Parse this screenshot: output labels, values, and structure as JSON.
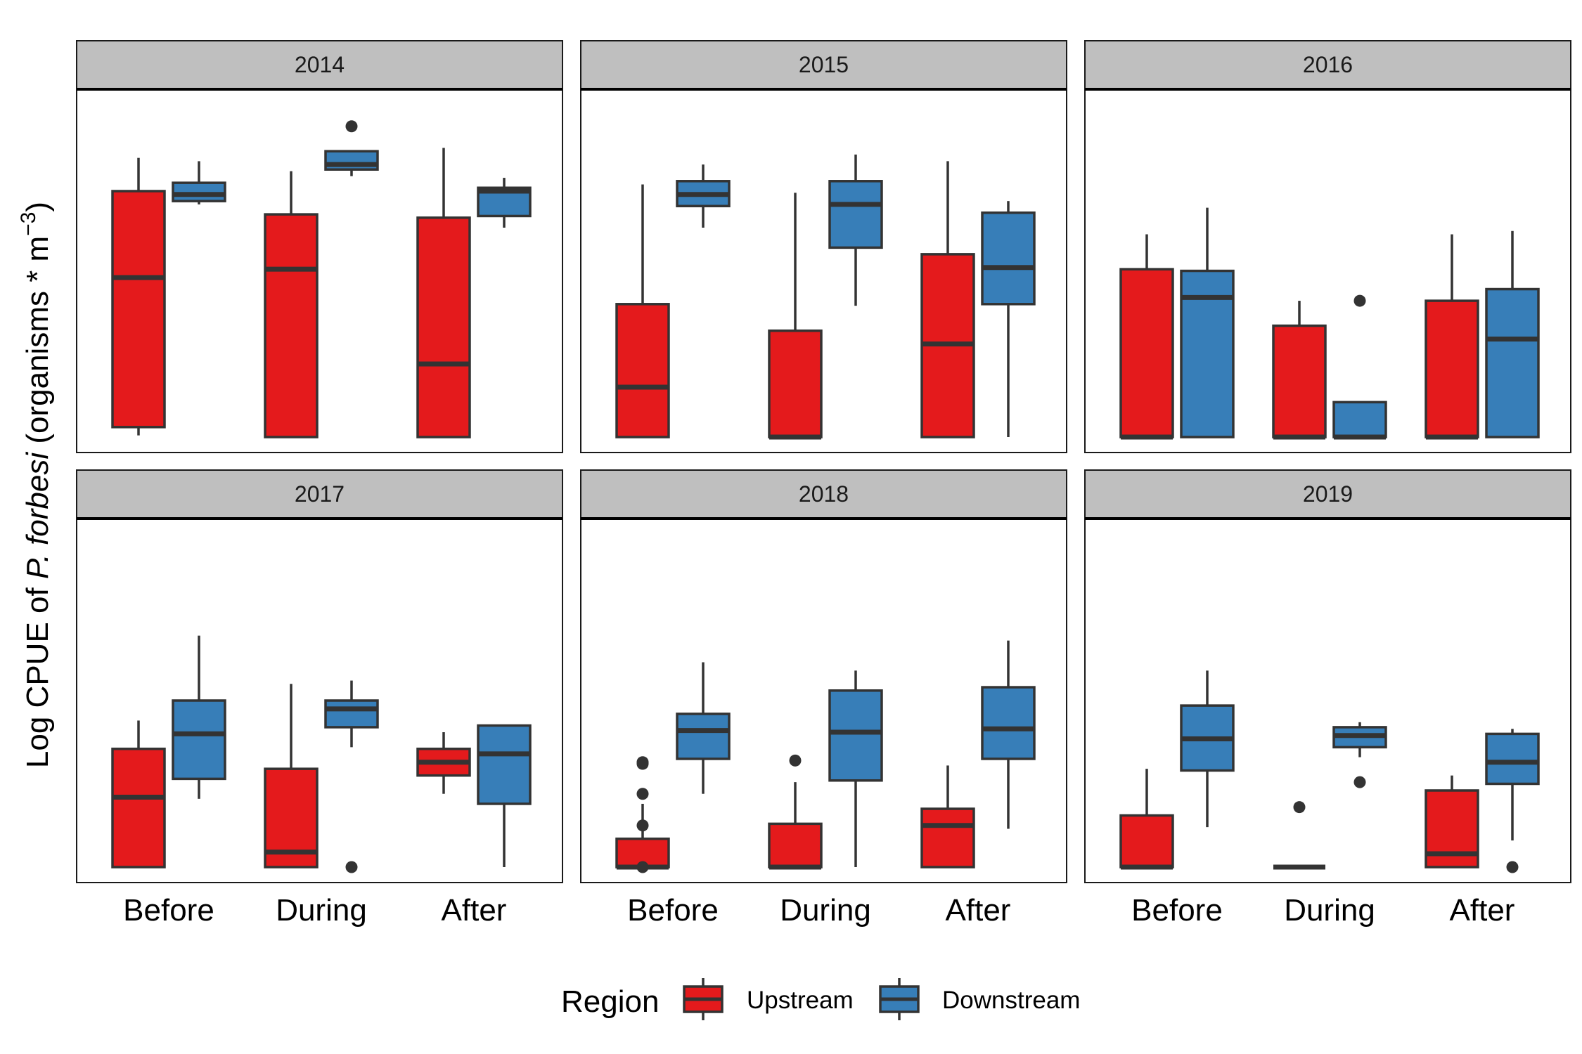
{
  "chart_data": {
    "type": "boxplot",
    "facet_by": "Year",
    "facets": [
      "2014",
      "2015",
      "2016",
      "2017",
      "2018",
      "2019"
    ],
    "categories": [
      "Before",
      "During",
      "After"
    ],
    "ylabel": {
      "prefix": "Log CPUE of ",
      "species": "P. forbesi",
      "units_open": " (organisms * m",
      "units_exp": "−3",
      "units_close": ")"
    },
    "ylim": [
      0,
      10
    ],
    "grid": false,
    "legend": {
      "title": "Region",
      "position": "bottom",
      "entries": [
        {
          "name": "Upstream",
          "color": "#E41A1C"
        },
        {
          "name": "Downstream",
          "color": "#377EB8"
        }
      ]
    },
    "colors": {
      "Upstream": "#E41A1C",
      "Downstream": "#377EB8",
      "outline": "#333333",
      "strip": "#BFBFBF"
    },
    "data": {
      "2014": {
        "Before": {
          "Upstream": {
            "min": 0.05,
            "q1": 0.3,
            "median": 4.8,
            "q3": 7.4,
            "max": 8.4,
            "outliers": []
          },
          "Downstream": {
            "min": 7.0,
            "q1": 7.1,
            "median": 7.3,
            "q3": 7.65,
            "max": 8.3,
            "outliers": []
          }
        },
        "During": {
          "Upstream": {
            "min": 0.0,
            "q1": 0.0,
            "median": 5.05,
            "q3": 6.7,
            "max": 8.0,
            "outliers": []
          },
          "Downstream": {
            "min": 7.85,
            "q1": 8.05,
            "median": 8.2,
            "q3": 8.6,
            "max": 8.6,
            "outliers": [
              9.35
            ]
          }
        },
        "After": {
          "Upstream": {
            "min": 0.0,
            "q1": 0.0,
            "median": 2.2,
            "q3": 6.6,
            "max": 8.7,
            "outliers": []
          },
          "Downstream": {
            "min": 6.3,
            "q1": 6.65,
            "median": 7.4,
            "q3": 7.5,
            "max": 7.8,
            "outliers": []
          }
        }
      },
      "2015": {
        "Before": {
          "Upstream": {
            "min": 0.0,
            "q1": 0.0,
            "median": 1.5,
            "q3": 4.0,
            "max": 7.6,
            "outliers": []
          },
          "Downstream": {
            "min": 6.3,
            "q1": 6.95,
            "median": 7.3,
            "q3": 7.7,
            "max": 8.2,
            "outliers": []
          }
        },
        "During": {
          "Upstream": {
            "min": 0.0,
            "q1": 0.0,
            "median": 0.0,
            "q3": 3.2,
            "max": 7.35,
            "outliers": []
          },
          "Downstream": {
            "min": 3.95,
            "q1": 5.7,
            "median": 7.0,
            "q3": 7.7,
            "max": 8.5,
            "outliers": []
          }
        },
        "After": {
          "Upstream": {
            "min": 0.0,
            "q1": 0.0,
            "median": 2.8,
            "q3": 5.5,
            "max": 8.3,
            "outliers": []
          },
          "Downstream": {
            "min": 0.0,
            "q1": 4.0,
            "median": 5.1,
            "q3": 6.75,
            "max": 7.1,
            "outliers": []
          }
        }
      },
      "2016": {
        "Before": {
          "Upstream": {
            "min": 0.0,
            "q1": 0.0,
            "median": 0.0,
            "q3": 5.05,
            "max": 6.1,
            "outliers": []
          },
          "Downstream": {
            "min": 0.0,
            "q1": 0.0,
            "median": 4.2,
            "q3": 5.0,
            "max": 6.9,
            "outliers": []
          }
        },
        "During": {
          "Upstream": {
            "min": 0.0,
            "q1": 0.0,
            "median": 0.0,
            "q3": 3.35,
            "max": 4.1,
            "outliers": []
          },
          "Downstream": {
            "min": 0.0,
            "q1": 0.0,
            "median": 0.0,
            "q3": 1.05,
            "max": 1.05,
            "outliers": [
              4.1
            ]
          }
        },
        "After": {
          "Upstream": {
            "min": 0.0,
            "q1": 0.0,
            "median": 0.0,
            "q3": 4.1,
            "max": 6.1,
            "outliers": []
          },
          "Downstream": {
            "min": 0.0,
            "q1": 0.0,
            "median": 2.95,
            "q3": 4.45,
            "max": 6.2,
            "outliers": []
          }
        }
      },
      "2017": {
        "Before": {
          "Upstream": {
            "min": 0.0,
            "q1": 0.0,
            "median": 2.1,
            "q3": 3.55,
            "max": 4.4,
            "outliers": []
          },
          "Downstream": {
            "min": 2.05,
            "q1": 2.65,
            "median": 4.0,
            "q3": 5.0,
            "max": 6.95,
            "outliers": []
          }
        },
        "During": {
          "Upstream": {
            "min": 0.0,
            "q1": 0.0,
            "median": 0.45,
            "q3": 2.95,
            "max": 5.5,
            "outliers": []
          },
          "Downstream": {
            "min": 3.6,
            "q1": 4.2,
            "median": 4.75,
            "q3": 5.0,
            "max": 5.6,
            "outliers": [
              0.0
            ]
          }
        },
        "After": {
          "Upstream": {
            "min": 2.2,
            "q1": 2.75,
            "median": 3.15,
            "q3": 3.55,
            "max": 4.05,
            "outliers": []
          },
          "Downstream": {
            "min": 0.0,
            "q1": 1.9,
            "median": 3.4,
            "q3": 4.25,
            "max": 4.25,
            "outliers": []
          }
        }
      },
      "2018": {
        "Before": {
          "Upstream": {
            "min": 0.0,
            "q1": 0.0,
            "median": 0.0,
            "q3": 0.85,
            "max": 1.9,
            "outliers": [
              2.2,
              3.1,
              3.15,
              0.0,
              1.25
            ]
          },
          "Downstream": {
            "min": 2.2,
            "q1": 3.25,
            "median": 4.1,
            "q3": 4.6,
            "max": 6.15,
            "outliers": []
          }
        },
        "During": {
          "Upstream": {
            "min": 0.0,
            "q1": 0.0,
            "median": 0.0,
            "q3": 1.3,
            "max": 2.55,
            "outliers": [
              3.2
            ]
          },
          "Downstream": {
            "min": 0.0,
            "q1": 2.6,
            "median": 4.05,
            "q3": 5.3,
            "max": 5.9,
            "outliers": []
          }
        },
        "After": {
          "Upstream": {
            "min": 0.0,
            "q1": 0.0,
            "median": 1.25,
            "q3": 1.75,
            "max": 3.05,
            "outliers": []
          },
          "Downstream": {
            "min": 1.15,
            "q1": 3.25,
            "median": 4.15,
            "q3": 5.4,
            "max": 6.8,
            "outliers": []
          }
        }
      },
      "2019": {
        "Before": {
          "Upstream": {
            "min": 0.0,
            "q1": 0.0,
            "median": 0.0,
            "q3": 1.55,
            "max": 2.95,
            "outliers": []
          },
          "Downstream": {
            "min": 1.2,
            "q1": 2.9,
            "median": 3.85,
            "q3": 4.85,
            "max": 5.9,
            "outliers": []
          }
        },
        "During": {
          "Upstream": {
            "min": 0.0,
            "q1": 0.0,
            "median": 0.0,
            "q3": 0.0,
            "max": 0.0,
            "outliers": [
              1.8
            ]
          },
          "Downstream": {
            "min": 3.3,
            "q1": 3.6,
            "median": 3.95,
            "q3": 4.2,
            "max": 4.35,
            "outliers": [
              2.55
            ]
          }
        },
        "After": {
          "Upstream": {
            "min": 0.0,
            "q1": 0.0,
            "median": 0.4,
            "q3": 2.3,
            "max": 2.75,
            "outliers": []
          },
          "Downstream": {
            "min": 0.8,
            "q1": 2.5,
            "median": 3.15,
            "q3": 4.0,
            "max": 4.15,
            "outliers": [
              0.0
            ]
          }
        }
      }
    }
  }
}
